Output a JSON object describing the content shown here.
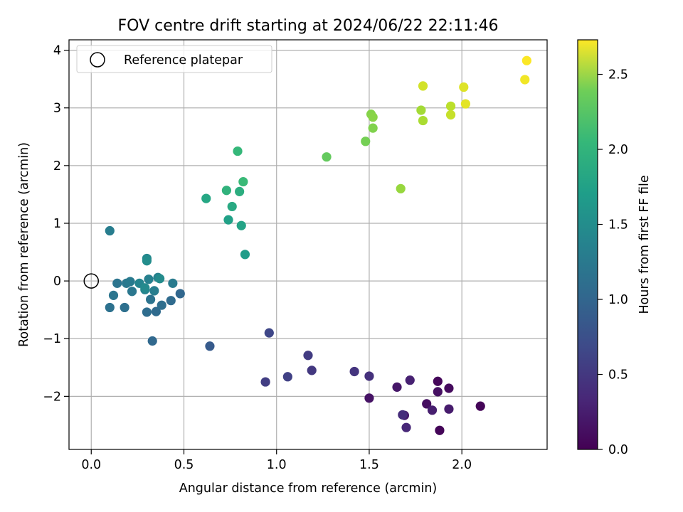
{
  "chart_data": {
    "type": "scatter",
    "title": "FOV centre drift starting at 2024/06/22 22:11:46",
    "xlabel": "Angular distance from reference (arcmin)",
    "ylabel": "Rotation from reference (arcmin)",
    "xlim": [
      -0.12,
      2.46
    ],
    "ylim": [
      -2.92,
      4.18
    ],
    "xticks": [
      0.0,
      0.5,
      1.0,
      1.5,
      2.0
    ],
    "xtick_labels": [
      "0.0",
      "0.5",
      "1.0",
      "1.5",
      "2.0"
    ],
    "yticks": [
      -2,
      -1,
      0,
      1,
      2,
      3,
      4
    ],
    "ytick_labels": [
      "−2",
      "−1",
      "0",
      "1",
      "2",
      "3",
      "4"
    ],
    "grid": true,
    "legend": {
      "position": "top-left",
      "entries": [
        "Reference platepar"
      ]
    },
    "reference_point": {
      "x": 0.0,
      "y": 0.0,
      "label": "Reference platepar"
    },
    "colorbar": {
      "label": "Hours from first FF file",
      "colormap": "viridis",
      "range": [
        0.0,
        2.73
      ],
      "ticks": [
        0.0,
        0.5,
        1.0,
        1.5,
        2.0,
        2.5
      ],
      "tick_labels": [
        "0.0",
        "0.5",
        "1.0",
        "1.5",
        "2.0",
        "2.5"
      ]
    },
    "points": [
      {
        "x": 1.88,
        "y": -2.59,
        "c": 0.03
      },
      {
        "x": 2.1,
        "y": -2.17,
        "c": 0.03
      },
      {
        "x": 1.87,
        "y": -1.74,
        "c": 0.05
      },
      {
        "x": 1.93,
        "y": -1.86,
        "c": 0.08
      },
      {
        "x": 1.81,
        "y": -2.13,
        "c": 0.1
      },
      {
        "x": 1.87,
        "y": -1.92,
        "c": 0.12
      },
      {
        "x": 1.5,
        "y": -2.03,
        "c": 0.14
      },
      {
        "x": 1.65,
        "y": -1.84,
        "c": 0.17
      },
      {
        "x": 1.69,
        "y": -2.33,
        "c": 0.19
      },
      {
        "x": 1.93,
        "y": -2.22,
        "c": 0.21
      },
      {
        "x": 1.84,
        "y": -2.24,
        "c": 0.23
      },
      {
        "x": 1.72,
        "y": -1.72,
        "c": 0.25
      },
      {
        "x": 1.7,
        "y": -2.54,
        "c": 0.3
      },
      {
        "x": 1.68,
        "y": -2.32,
        "c": 0.35
      },
      {
        "x": 1.5,
        "y": -1.65,
        "c": 0.38
      },
      {
        "x": 1.42,
        "y": -1.57,
        "c": 0.41
      },
      {
        "x": 1.19,
        "y": -1.55,
        "c": 0.45
      },
      {
        "x": 1.17,
        "y": -1.29,
        "c": 0.48
      },
      {
        "x": 0.94,
        "y": -1.75,
        "c": 0.5
      },
      {
        "x": 1.06,
        "y": -1.66,
        "c": 0.53
      },
      {
        "x": 0.96,
        "y": -0.9,
        "c": 0.58
      },
      {
        "x": 0.64,
        "y": -1.13,
        "c": 0.78
      },
      {
        "x": 0.48,
        "y": -0.22,
        "c": 0.9
      },
      {
        "x": 0.33,
        "y": -1.04,
        "c": 0.92
      },
      {
        "x": 0.43,
        "y": -0.34,
        "c": 0.94
      },
      {
        "x": 0.35,
        "y": -0.53,
        "c": 0.95
      },
      {
        "x": 0.3,
        "y": -0.54,
        "c": 0.97
      },
      {
        "x": 0.38,
        "y": -0.42,
        "c": 0.98
      },
      {
        "x": 0.18,
        "y": -0.46,
        "c": 1.0
      },
      {
        "x": 0.1,
        "y": -0.46,
        "c": 1.02
      },
      {
        "x": 0.32,
        "y": -0.32,
        "c": 1.04
      },
      {
        "x": 0.14,
        "y": -0.04,
        "c": 1.05
      },
      {
        "x": 0.12,
        "y": -0.25,
        "c": 1.06
      },
      {
        "x": 0.22,
        "y": -0.18,
        "c": 1.08
      },
      {
        "x": 0.19,
        "y": -0.04,
        "c": 1.1
      },
      {
        "x": 0.21,
        "y": -0.01,
        "c": 1.12
      },
      {
        "x": 0.44,
        "y": -0.04,
        "c": 1.13
      },
      {
        "x": 0.1,
        "y": 0.87,
        "c": 1.15
      },
      {
        "x": 0.34,
        "y": -0.17,
        "c": 1.17
      },
      {
        "x": 0.31,
        "y": 0.03,
        "c": 1.19
      },
      {
        "x": 0.36,
        "y": 0.06,
        "c": 1.2
      },
      {
        "x": 0.29,
        "y": -0.15,
        "c": 1.22
      },
      {
        "x": 0.26,
        "y": -0.04,
        "c": 1.24
      },
      {
        "x": 0.3,
        "y": 0.39,
        "c": 1.28
      },
      {
        "x": 0.29,
        "y": -0.12,
        "c": 1.3
      },
      {
        "x": 0.37,
        "y": 0.04,
        "c": 1.31
      },
      {
        "x": 0.3,
        "y": 0.35,
        "c": 1.33
      },
      {
        "x": 0.83,
        "y": 0.46,
        "c": 1.5
      },
      {
        "x": 0.74,
        "y": 1.06,
        "c": 1.55
      },
      {
        "x": 0.81,
        "y": 0.96,
        "c": 1.58
      },
      {
        "x": 0.62,
        "y": 1.43,
        "c": 1.62
      },
      {
        "x": 0.76,
        "y": 1.29,
        "c": 1.65
      },
      {
        "x": 0.8,
        "y": 1.55,
        "c": 1.7
      },
      {
        "x": 0.73,
        "y": 1.57,
        "c": 1.76
      },
      {
        "x": 0.79,
        "y": 2.25,
        "c": 1.82
      },
      {
        "x": 0.82,
        "y": 1.72,
        "c": 1.84
      },
      {
        "x": 1.27,
        "y": 2.15,
        "c": 2.07
      },
      {
        "x": 1.48,
        "y": 2.42,
        "c": 2.15
      },
      {
        "x": 1.52,
        "y": 2.65,
        "c": 2.2
      },
      {
        "x": 1.51,
        "y": 2.89,
        "c": 2.22
      },
      {
        "x": 1.52,
        "y": 2.84,
        "c": 2.24
      },
      {
        "x": 1.67,
        "y": 1.6,
        "c": 2.3
      },
      {
        "x": 1.78,
        "y": 2.96,
        "c": 2.35
      },
      {
        "x": 1.79,
        "y": 2.78,
        "c": 2.38
      },
      {
        "x": 1.94,
        "y": 3.03,
        "c": 2.45
      },
      {
        "x": 1.94,
        "y": 2.88,
        "c": 2.5
      },
      {
        "x": 1.79,
        "y": 3.38,
        "c": 2.55
      },
      {
        "x": 2.01,
        "y": 3.36,
        "c": 2.6
      },
      {
        "x": 2.02,
        "y": 3.07,
        "c": 2.62
      },
      {
        "x": 2.34,
        "y": 3.49,
        "c": 2.68
      },
      {
        "x": 2.35,
        "y": 3.82,
        "c": 2.72
      }
    ]
  }
}
